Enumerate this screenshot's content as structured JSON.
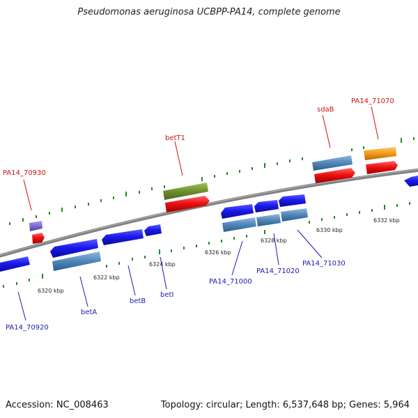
{
  "title": "Pseudomonas aeruginosa UCBPP-PA14, complete genome",
  "footer": {
    "accession": "Accession: NC_008463",
    "topology": "Topology: circular; Length: 6,537,648 bp; Genes: 5,964"
  },
  "colors": {
    "forward_cds": "#1a1aee",
    "reverse_cds": "#1a1aee",
    "gene_forward": "#ee1111",
    "gene_reverse": "#4f86b8",
    "betT1_feature": "#6d8f2e",
    "PA14_71070_feature": "#f09a1a",
    "PA14_70930_feature": "#7a6ad4",
    "label_forward": "#cc1111",
    "label_reverse": "#1a1aaa",
    "backbone": "#808080",
    "tick_major": "#228822",
    "tick_minor": "#226622"
  },
  "scale_ticks": [
    "6320 kbp",
    "6322 kbp",
    "6324 kbp",
    "6326 kbp",
    "6328 kbp",
    "6330 kbp",
    "6332 kbp"
  ],
  "labels_forward": [
    "PA14_70930",
    "betT1",
    "sdaB",
    "PA14_71070"
  ],
  "labels_reverse": [
    "PA14_70920",
    "betA",
    "betB",
    "betI",
    "PA14_71000",
    "PA14_71020",
    "PA14_71030"
  ]
}
